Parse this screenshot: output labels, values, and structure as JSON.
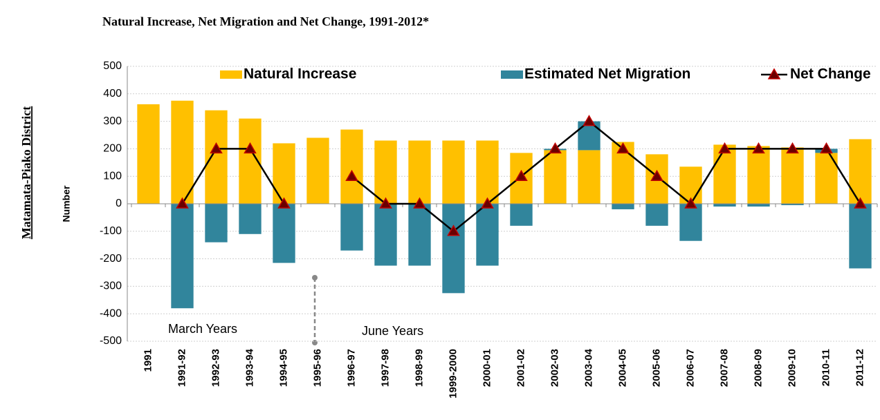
{
  "chart_data": {
    "type": "bar",
    "title": "Natural Increase, Net Migration and Net Change, 1991-2012*",
    "region_label": "Matamata-Piako District",
    "ylabel": "Number",
    "categories": [
      "1991",
      "1991-92",
      "1992-93",
      "1993-94",
      "1994-95",
      "1995-96",
      "1996-97",
      "1997-98",
      "1998-99",
      "1999-2000",
      "2000-01",
      "2001-02",
      "2002-03",
      "2003-04",
      "2004-05",
      "2005-06",
      "2006-07",
      "2007-08",
      "2008-09",
      "2009-10",
      "2010-11",
      "2011-12"
    ],
    "series": [
      {
        "name": "Natural Increase",
        "type": "bar",
        "color": "#FFC000",
        "values": [
          362,
          375,
          340,
          310,
          220,
          240,
          270,
          230,
          230,
          230,
          230,
          185,
          195,
          195,
          225,
          180,
          135,
          215,
          210,
          205,
          185,
          235
        ]
      },
      {
        "name": "Estimated Net Migration",
        "type": "bar",
        "color": "#31859C",
        "values": [
          null,
          -380,
          -140,
          -110,
          -215,
          null,
          -170,
          -225,
          -225,
          -325,
          -225,
          -80,
          5,
          105,
          -20,
          -80,
          -135,
          -10,
          -10,
          -5,
          15,
          -235
        ]
      },
      {
        "name": "Net Change",
        "type": "line",
        "color": "#000000",
        "marker_color": "#C00000",
        "values": [
          null,
          0,
          200,
          200,
          0,
          null,
          100,
          0,
          0,
          -100,
          0,
          100,
          200,
          300,
          200,
          100,
          0,
          200,
          200,
          200,
          200,
          0
        ]
      }
    ],
    "ylim": [
      -500,
      500
    ],
    "yticks": [
      -500,
      -400,
      -300,
      -200,
      -100,
      0,
      100,
      200,
      300,
      400,
      500
    ],
    "grid": true,
    "legend": "top",
    "annotations": [
      "March Years",
      "June Years"
    ]
  }
}
